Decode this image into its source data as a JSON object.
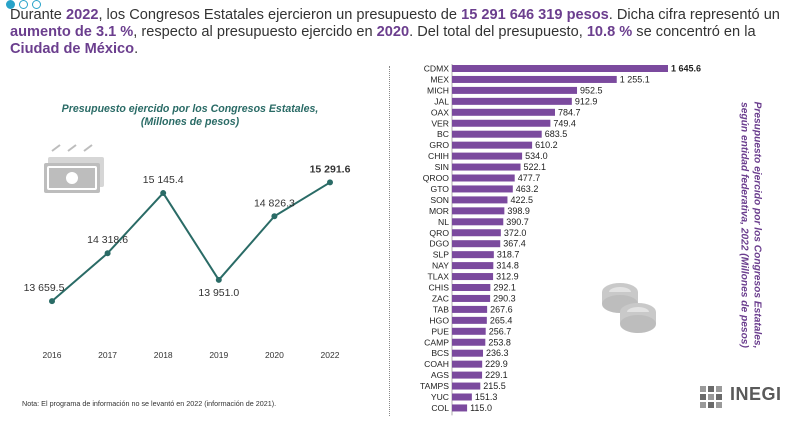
{
  "headline": {
    "t1": "Durante ",
    "year": "2022",
    "t2": ", los Congresos Estatales ejercieron un presupuesto de ",
    "amount": "15 291 646 319 pesos",
    "t3": ". Dicha cifra representó un ",
    "increase_label": "aumento de 3.1 %",
    "t4": ", respecto al presupuesto ejercido en ",
    "ref_year": "2020",
    "t5": ". Del total del presupuesto, ",
    "share": "10.8 %",
    "t6": " se concentró en la ",
    "city": "Ciudad de México",
    "t7": "."
  },
  "note": "Nota: El programa de información no se levantó en 2022 (información de 2021).",
  "logo": "INEGI",
  "chart_data": [
    {
      "type": "line",
      "title": "Presupuesto ejercido por los Congresos Estatales, (Millones de pesos)",
      "title_lines": [
        "Presupuesto ejercido por los Congresos Estatales,",
        "(Millones de pesos)"
      ],
      "categories": [
        "2016",
        "2017",
        "2018",
        "2019",
        "2020",
        "2022"
      ],
      "values": [
        13659.5,
        14318.6,
        15145.4,
        13951.0,
        14826.3,
        15291.6
      ],
      "value_labels": [
        "13 659.5",
        "14 318.6",
        "15 145.4",
        "13 951.0",
        "14 826.3",
        "15 291.6"
      ],
      "ylim": [
        13400,
        15600
      ],
      "color": "#2a6b66"
    },
    {
      "type": "bar",
      "orientation": "horizontal",
      "title": "Presupuesto ejercido por los Congresos Estatales, según entidad federativa, 2022 (Millones de pesos)",
      "categories": [
        "CDMX",
        "MEX",
        "MICH",
        "JAL",
        "OAX",
        "VER",
        "BC",
        "GRO",
        "CHIH",
        "SIN",
        "QROO",
        "GTO",
        "SON",
        "MOR",
        "NL",
        "QRO",
        "DGO",
        "SLP",
        "NAY",
        "TLAX",
        "CHIS",
        "ZAC",
        "TAB",
        "HGO",
        "PUE",
        "CAMP",
        "BCS",
        "COAH",
        "AGS",
        "TAMPS",
        "YUC",
        "COL"
      ],
      "values": [
        1645.6,
        1255.1,
        952.5,
        912.9,
        784.7,
        749.4,
        683.5,
        610.2,
        534.0,
        522.1,
        477.7,
        463.2,
        422.5,
        398.9,
        390.7,
        372.0,
        367.4,
        318.7,
        314.8,
        312.9,
        292.1,
        290.3,
        267.6,
        265.4,
        256.7,
        253.8,
        236.3,
        229.9,
        229.1,
        215.5,
        151.3,
        115.0
      ],
      "value_labels": [
        "1 645.6",
        "1 255.1",
        "952.5",
        "912.9",
        "784.7",
        "749.4",
        "683.5",
        "610.2",
        "534.0",
        "522.1",
        "477.7",
        "463.2",
        "422.5",
        "398.9",
        "390.7",
        "372.0",
        "367.4",
        "318.7",
        "314.8",
        "312.9",
        "292.1",
        "290.3",
        "267.6",
        "265.4",
        "256.7",
        "253.8",
        "236.3",
        "229.9",
        "229.1",
        "215.5",
        "151.3",
        "115.0"
      ],
      "xlim": [
        0,
        1700
      ],
      "color": "#7b4a9e"
    }
  ]
}
